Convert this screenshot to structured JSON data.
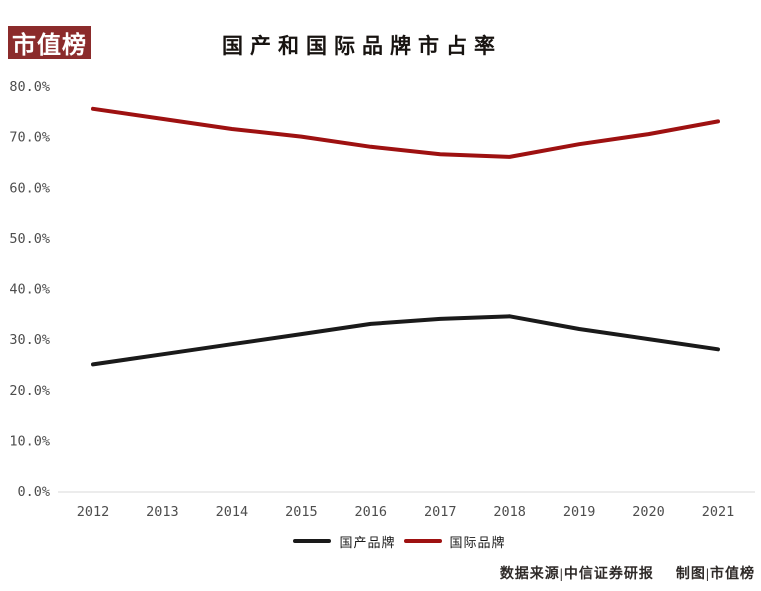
{
  "logo": {
    "text": "市值榜",
    "bg_color": "#8b2b2b",
    "text_color": "#ffffff"
  },
  "title": "国产和国际品牌市占率",
  "footer": {
    "source": "数据来源|中信证券研报",
    "credit": "制图|市值榜"
  },
  "colors": {
    "domestic_line": "#1a1a1a",
    "international_line": "#9e1111",
    "axis_line": "#d9d9d9",
    "tick_text": "#4d4d4d"
  },
  "chart_data": {
    "type": "line",
    "title": "国产和国际品牌市占率",
    "x": [
      "2012",
      "2013",
      "2014",
      "2015",
      "2016",
      "2017",
      "2018",
      "2019",
      "2020",
      "2021"
    ],
    "series": [
      {
        "name": "国产品牌",
        "color": "#1a1a1a",
        "values": [
          25,
          27,
          29,
          31,
          33,
          34,
          34.5,
          32,
          30,
          28
        ]
      },
      {
        "name": "国际品牌",
        "color": "#9e1111",
        "values": [
          75.5,
          73.5,
          71.5,
          70,
          68,
          66.5,
          66,
          68.5,
          70.5,
          73
        ]
      }
    ],
    "ylim": [
      0,
      80
    ],
    "yticks": [
      "0.0%",
      "10.0%",
      "20.0%",
      "30.0%",
      "40.0%",
      "50.0%",
      "60.0%",
      "70.0%",
      "80.0%"
    ],
    "ylabel": "",
    "xlabel": "",
    "grid": false,
    "legend_position": "bottom"
  }
}
